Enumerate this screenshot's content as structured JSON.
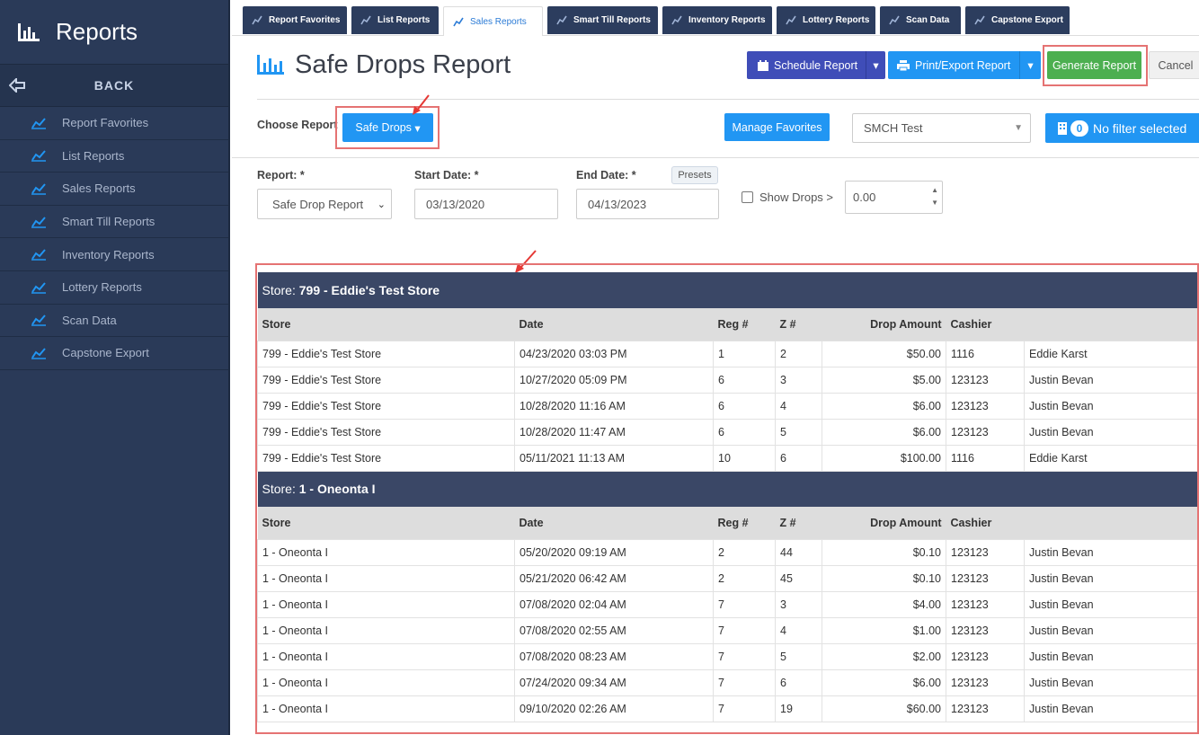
{
  "sidebar": {
    "title": "Reports",
    "back": "BACK",
    "items": [
      "Report Favorites",
      "List Reports",
      "Sales Reports",
      "Smart Till Reports",
      "Inventory Reports",
      "Lottery Reports",
      "Scan Data",
      "Capstone Export"
    ]
  },
  "tabs": [
    "Report Favorites",
    "List Reports",
    "Sales Reports",
    "Smart Till Reports",
    "Inventory Reports",
    "Lottery Reports",
    "Scan Data",
    "Capstone Export"
  ],
  "active_tab": 2,
  "page": {
    "title": "Safe Drops Report",
    "buttons": {
      "schedule": "Schedule Report",
      "print": "Print/Export Report",
      "generate": "Generate Report",
      "cancel": "Cancel"
    }
  },
  "toolbar": {
    "choose_label": "Choose Report",
    "report_button": "Safe Drops",
    "manage_favorites": "Manage Favorites",
    "store_select": "SMCH Test",
    "filter_count": 0,
    "filter_label": "No filter selected"
  },
  "form": {
    "report_label": "Report: *",
    "report_value": "Safe Drop Report",
    "start_label": "Start Date: *",
    "start_value": "03/13/2020",
    "end_label": "End Date: *",
    "end_value": "04/13/2023",
    "presets": "Presets",
    "show_drops_label": "Show Drops >",
    "show_drops_value": "0.00"
  },
  "report": {
    "columns": [
      "Store",
      "Date",
      "Reg #",
      "Z #",
      "Drop Amount",
      "Cashier"
    ],
    "groups": [
      {
        "prefix": "Store:",
        "name": "799 - Eddie's Test Store",
        "rows": [
          [
            "799 - Eddie's Test Store",
            "04/23/2020 03:03 PM",
            1,
            2,
            "$50.00",
            1116,
            "Eddie Karst"
          ],
          [
            "799 - Eddie's Test Store",
            "10/27/2020 05:09 PM",
            6,
            3,
            "$5.00",
            123123,
            "Justin Bevan"
          ],
          [
            "799 - Eddie's Test Store",
            "10/28/2020 11:16 AM",
            6,
            4,
            "$6.00",
            123123,
            "Justin Bevan"
          ],
          [
            "799 - Eddie's Test Store",
            "10/28/2020 11:47 AM",
            6,
            5,
            "$6.00",
            123123,
            "Justin Bevan"
          ],
          [
            "799 - Eddie's Test Store",
            "05/11/2021 11:13 AM",
            10,
            6,
            "$100.00",
            1116,
            "Eddie Karst"
          ]
        ]
      },
      {
        "prefix": "Store:",
        "name": "1 - Oneonta I",
        "rows": [
          [
            "1 - Oneonta I",
            "05/20/2020 09:19 AM",
            2,
            44,
            "$0.10",
            123123,
            "Justin Bevan"
          ],
          [
            "1 - Oneonta I",
            "05/21/2020 06:42 AM",
            2,
            45,
            "$0.10",
            123123,
            "Justin Bevan"
          ],
          [
            "1 - Oneonta I",
            "07/08/2020 02:04 AM",
            7,
            3,
            "$4.00",
            123123,
            "Justin Bevan"
          ],
          [
            "1 - Oneonta I",
            "07/08/2020 02:55 AM",
            7,
            4,
            "$1.00",
            123123,
            "Justin Bevan"
          ],
          [
            "1 - Oneonta I",
            "07/08/2020 08:23 AM",
            7,
            5,
            "$2.00",
            123123,
            "Justin Bevan"
          ],
          [
            "1 - Oneonta I",
            "07/24/2020 09:34 AM",
            7,
            6,
            "$6.00",
            123123,
            "Justin Bevan"
          ],
          [
            "1 - Oneonta I",
            "09/10/2020 02:26 AM",
            7,
            19,
            "$60.00",
            123123,
            "Justin Bevan"
          ]
        ]
      }
    ]
  }
}
